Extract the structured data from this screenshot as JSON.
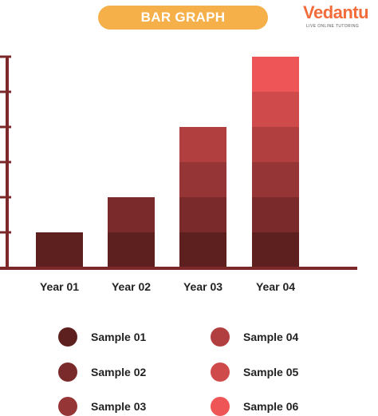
{
  "header": {
    "title": "BAR GRAPH",
    "logo_text": "Vedantu",
    "logo_tagline": "LIVE ONLINE TUTORING"
  },
  "chart_data": {
    "type": "bar",
    "stacked": true,
    "title": "BAR GRAPH",
    "xlabel": "",
    "ylabel": "",
    "categories": [
      "Year 01",
      "Year 02",
      "Year 03",
      "Year 04"
    ],
    "series": [
      {
        "name": "Sample 01",
        "color": "#5e1f1f",
        "values": [
          1,
          1,
          1,
          1
        ]
      },
      {
        "name": "Sample 02",
        "color": "#7a2a2b",
        "values": [
          0,
          1,
          1,
          1
        ]
      },
      {
        "name": "Sample 03",
        "color": "#963536",
        "values": [
          0,
          0,
          1,
          1
        ]
      },
      {
        "name": "Sample 04",
        "color": "#b13f40",
        "values": [
          0,
          0,
          1,
          1
        ]
      },
      {
        "name": "Sample 05",
        "color": "#cf4a4b",
        "values": [
          0,
          0,
          0,
          1
        ]
      },
      {
        "name": "Sample 06",
        "color": "#ee5556",
        "values": [
          0,
          0,
          0,
          1
        ]
      }
    ],
    "ylim": [
      0,
      6
    ],
    "y_ticks_shown": false,
    "grid": false,
    "axis_color": "#7d2828",
    "legend": {
      "placement": "bottom",
      "columns": 2
    }
  }
}
